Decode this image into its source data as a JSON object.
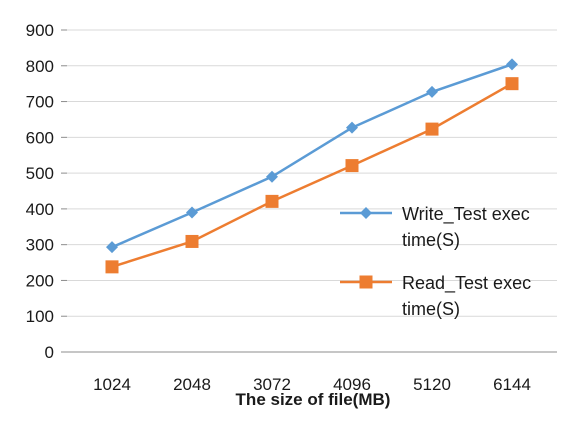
{
  "chart_data": {
    "type": "line",
    "categories": [
      "1024",
      "2048",
      "3072",
      "4096",
      "5120",
      "6144"
    ],
    "series": [
      {
        "name": "Write_Test exec time(S)",
        "name_lines": [
          "Write_Test exec",
          "time(S)"
        ],
        "values": [
          293,
          390,
          490,
          627,
          727,
          804
        ],
        "color": "#5b9bd5",
        "marker": "diamond"
      },
      {
        "name": "Read_Test exec time(S)",
        "name_lines": [
          "Read_Test exec",
          "time(S)"
        ],
        "values": [
          238,
          309,
          421,
          521,
          623,
          750
        ],
        "color": "#ed7d31",
        "marker": "square"
      }
    ],
    "title": "",
    "xlabel": "The size of file(MB)",
    "ylabel": "",
    "ylim": [
      0,
      900
    ],
    "yticks": [
      "0",
      "100",
      "200",
      "300",
      "400",
      "500",
      "600",
      "700",
      "800",
      "900"
    ],
    "grid": "horizontal",
    "legend": "right"
  }
}
